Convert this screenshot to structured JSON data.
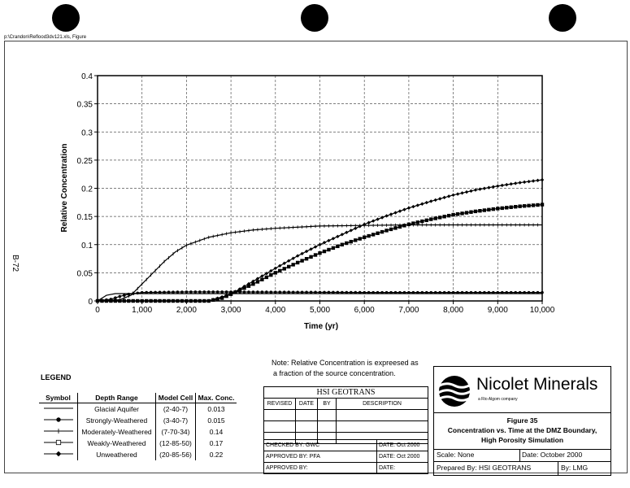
{
  "file_path": "p:\\Crandon\\Reflood3dv121.xls, Figure",
  "page_label": "B-72",
  "chart_data": {
    "type": "line",
    "title": "",
    "xlabel": "Time (yr)",
    "ylabel": "Relative Concentration",
    "xlim": [
      0,
      10000
    ],
    "ylim": [
      0,
      0.4
    ],
    "xticks": [
      "0",
      "1,000",
      "2,000",
      "3,000",
      "4,000",
      "5,000",
      "6,000",
      "7,000",
      "8,000",
      "9,000",
      "10,000"
    ],
    "yticks": [
      "0",
      "0.05",
      "0.1",
      "0.15",
      "0.2",
      "0.25",
      "0.3",
      "0.35",
      "0.4"
    ],
    "grid": true,
    "series": [
      {
        "name": "Glacial Aquifer",
        "marker": "none",
        "x": [
          0,
          100,
          200,
          400,
          1000,
          3000,
          6000,
          10000
        ],
        "y": [
          0,
          0.005,
          0.01,
          0.013,
          0.013,
          0.013,
          0.013,
          0.013
        ]
      },
      {
        "name": "Strongly-Weathered",
        "marker": "dot",
        "x": [
          0,
          300,
          500,
          700,
          1000,
          2000,
          3000,
          6000,
          10000
        ],
        "y": [
          0,
          0.003,
          0.008,
          0.012,
          0.015,
          0.016,
          0.016,
          0.015,
          0.015
        ]
      },
      {
        "name": "Moderately-Weathered",
        "marker": "tick",
        "x": [
          0,
          500,
          750,
          1000,
          1250,
          1500,
          1750,
          2000,
          2500,
          3000,
          3500,
          4000,
          5000,
          6000,
          7000,
          8000,
          10000
        ],
        "y": [
          0,
          0.002,
          0.01,
          0.03,
          0.05,
          0.07,
          0.087,
          0.099,
          0.113,
          0.121,
          0.126,
          0.129,
          0.133,
          0.134,
          0.135,
          0.135,
          0.135
        ]
      },
      {
        "name": "Weakly-Weathered",
        "marker": "square",
        "x": [
          0,
          2500,
          2800,
          3000,
          3500,
          4000,
          4500,
          5000,
          5500,
          6000,
          6500,
          7000,
          7500,
          8000,
          8500,
          9000,
          9500,
          10000
        ],
        "y": [
          0,
          0,
          0.005,
          0.012,
          0.03,
          0.05,
          0.068,
          0.085,
          0.1,
          0.113,
          0.125,
          0.136,
          0.145,
          0.153,
          0.159,
          0.164,
          0.168,
          0.171
        ]
      },
      {
        "name": "Unweathered",
        "marker": "diamond",
        "x": [
          0,
          2500,
          3000,
          3500,
          4000,
          4500,
          5000,
          5500,
          6000,
          6500,
          7000,
          7500,
          8000,
          8500,
          9000,
          9500,
          10000
        ],
        "y": [
          0,
          0,
          0.012,
          0.035,
          0.058,
          0.08,
          0.1,
          0.118,
          0.136,
          0.151,
          0.165,
          0.177,
          0.188,
          0.197,
          0.204,
          0.21,
          0.215
        ]
      }
    ]
  },
  "note": [
    "Note: Relative Concentration is expreesed as",
    "a fraction of the source concentration."
  ],
  "legend": {
    "title": "LEGEND",
    "headers": [
      "Symbol",
      "Depth Range",
      "Model Cell",
      "Max. Conc."
    ],
    "rows": [
      {
        "marker": "none",
        "depth": "Glacial Aquifer",
        "cell": "(2-40-7)",
        "max": "0.013"
      },
      {
        "marker": "dot",
        "depth": "Strongly-Weathered",
        "cell": "(3-40-7)",
        "max": "0.015"
      },
      {
        "marker": "tick",
        "depth": "Moderately-Weathered",
        "cell": "(7-70-34)",
        "max": "0.14"
      },
      {
        "marker": "square",
        "depth": "Weakly-Weathered",
        "cell": "(12-85-50)",
        "max": "0.17"
      },
      {
        "marker": "diamond",
        "depth": "Unweathered",
        "cell": "(20-85-56)",
        "max": "0.22"
      }
    ]
  },
  "revision": {
    "company": "HSI GEOTRANS",
    "headers": [
      "REVISED",
      "DATE",
      "BY",
      "DESCRIPTION"
    ],
    "checked_by": "CHECKED BY: GWC",
    "checked_date": "DATE:  Oct 2000",
    "approved_by_1": "APPROVED BY:  PFA",
    "approved_date_1": "DATE:  Oct 2000",
    "approved_by_2": "APPROVED BY:",
    "approved_date_2": "DATE:"
  },
  "title_block": {
    "company": "Nicolet Minerals",
    "subsidiary": "a Rio Algom company",
    "figure": "Figure 35",
    "caption_1": "Concentration vs. Time at the DMZ Boundary,",
    "caption_2": "High Porosity Simulation",
    "scale": "Scale:  None",
    "date": "Date: October 2000",
    "prepared": "Prepared By:  HSI GEOTRANS",
    "by": "By:  LMG"
  }
}
